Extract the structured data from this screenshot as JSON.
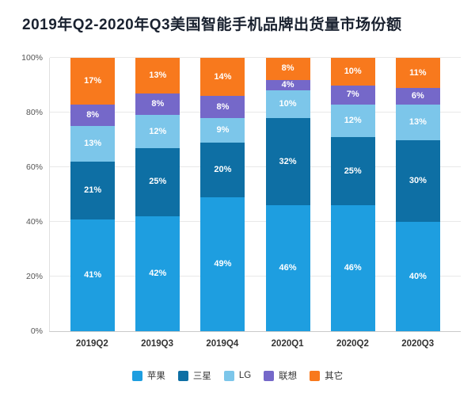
{
  "chart_data": {
    "type": "bar",
    "stacked": true,
    "title": "2019年Q2-2020年Q3美国智能手机品牌出货量市场份额",
    "categories": [
      "2019Q2",
      "2019Q3",
      "2019Q4",
      "2020Q1",
      "2020Q2",
      "2020Q3"
    ],
    "series": [
      {
        "name": "苹果",
        "color": "#1E9EE0",
        "values": [
          41,
          42,
          49,
          46,
          46,
          40
        ]
      },
      {
        "name": "三星",
        "color": "#0E6FA4",
        "values": [
          21,
          25,
          20,
          32,
          25,
          30
        ]
      },
      {
        "name": "LG",
        "color": "#7CC6EA",
        "values": [
          13,
          12,
          9,
          10,
          12,
          13
        ]
      },
      {
        "name": "联想",
        "color": "#7568C9",
        "values": [
          8,
          8,
          8,
          4,
          7,
          6
        ]
      },
      {
        "name": "其它",
        "color": "#F8791D",
        "values": [
          17,
          13,
          14,
          8,
          10,
          11
        ]
      }
    ],
    "xlabel": "",
    "ylabel": "",
    "ylim": [
      0,
      100
    ],
    "yticks": [
      "0%",
      "20%",
      "40%",
      "60%",
      "80%",
      "100%"
    ],
    "grid": true,
    "legend_position": "bottom",
    "value_label_format": "percent"
  }
}
